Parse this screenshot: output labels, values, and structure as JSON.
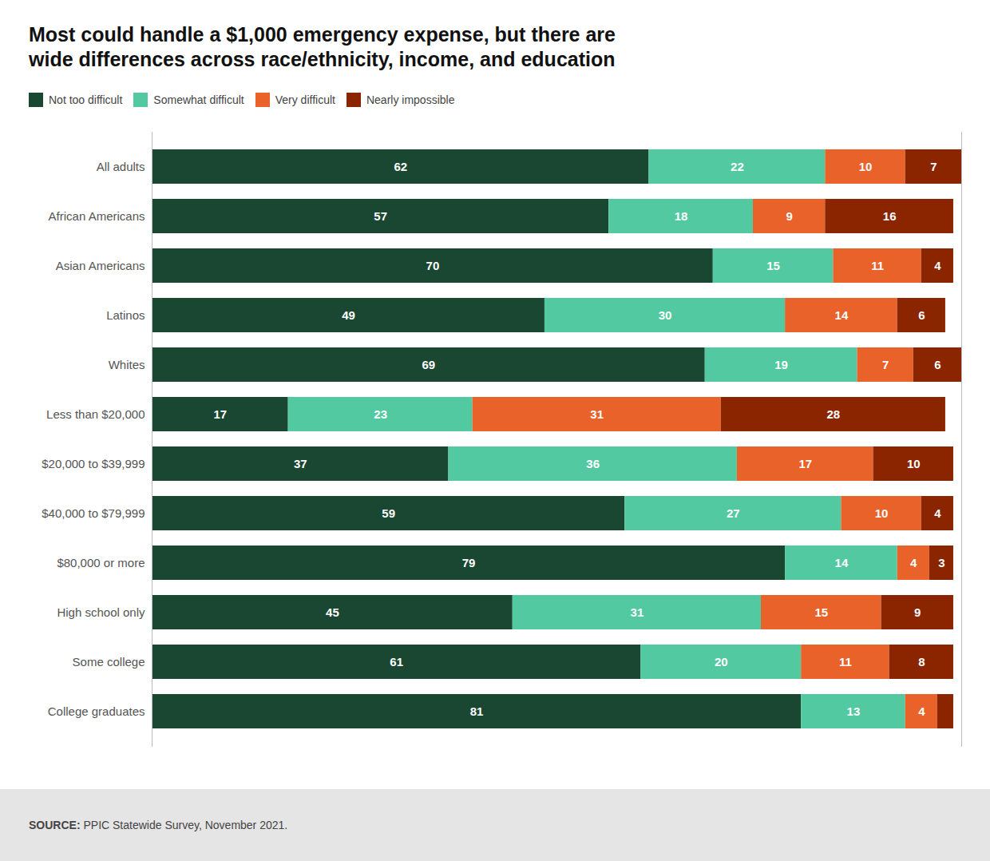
{
  "chart_data": {
    "type": "bar",
    "orientation": "horizontal",
    "stacked": true,
    "data_labels": true,
    "tick_labels": "y",
    "title": "Most could handle a $1,000 emergency expense, but there are\nwide differences across race/ethnicity, income, and education",
    "categories": [
      "All adults",
      "African Americans",
      "Asian Americans",
      "Latinos",
      "Whites",
      "Less than $20,000",
      "$20,000 to $39,999",
      "$40,000 to $79,999",
      "$80,000 or more",
      "High school only",
      "Some college",
      "College graduates"
    ],
    "series": [
      {
        "name": "Not too difficult",
        "color": "#1a4731",
        "values": [
          62,
          57,
          70,
          49,
          69,
          17,
          37,
          59,
          79,
          45,
          61,
          81
        ]
      },
      {
        "name": "Somewhat difficult",
        "color": "#52c9a0",
        "values": [
          22,
          18,
          15,
          30,
          19,
          23,
          36,
          27,
          14,
          31,
          20,
          13
        ]
      },
      {
        "name": "Very difficult",
        "color": "#e8622a",
        "values": [
          10,
          9,
          11,
          14,
          7,
          31,
          17,
          10,
          4,
          15,
          11,
          4
        ]
      },
      {
        "name": "Nearly impossible",
        "color": "#8b2500",
        "values": [
          7,
          16,
          4,
          6,
          6,
          28,
          10,
          4,
          3,
          9,
          8,
          2
        ],
        "value_labels": [
          "7",
          "16",
          "4",
          "6",
          "6",
          "28",
          "10",
          "4",
          "3",
          "9",
          "8",
          null
        ]
      }
    ],
    "xlim": [
      0,
      101
    ],
    "annotations": [
      "SOURCE:",
      " PPIC Statewide Survey, November 2021."
    ]
  }
}
